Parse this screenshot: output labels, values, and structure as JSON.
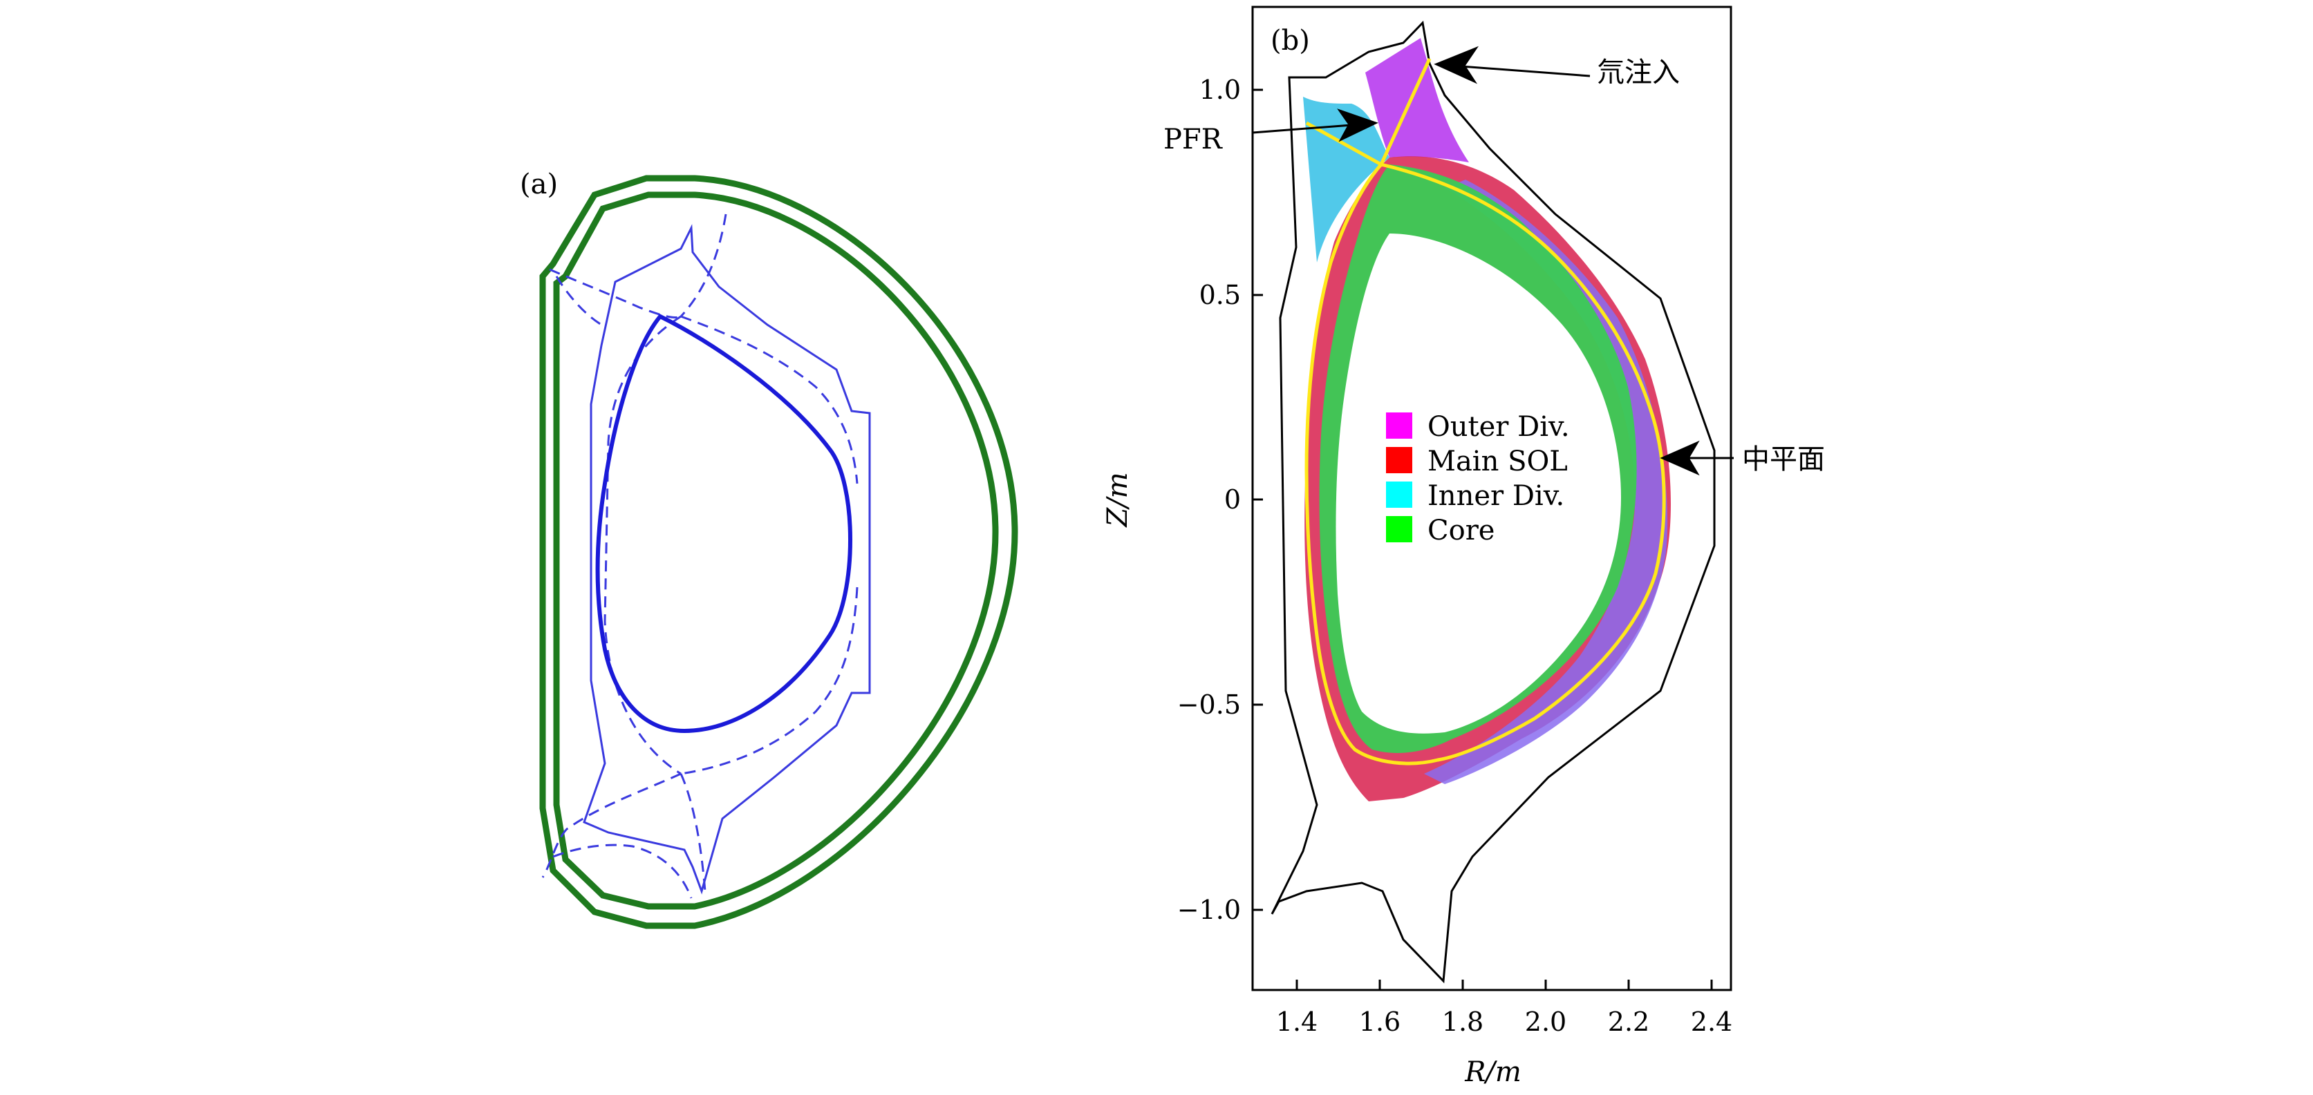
{
  "panel_a": {
    "label": "(a)"
  },
  "panel_b": {
    "label": "(b)",
    "x_axis": {
      "label": "R/m",
      "ticks": [
        "1.4",
        "1.6",
        "1.8",
        "2.0",
        "2.2",
        "2.4"
      ]
    },
    "y_axis": {
      "label": "Z/m",
      "ticks": [
        "1.0",
        "0.5",
        "0",
        "−0.5",
        "−1.0"
      ]
    },
    "annotations": {
      "gas_puff": "氘注入",
      "pfr": "PFR",
      "midplane": "中平面"
    },
    "legend": [
      {
        "label": "Outer Div.",
        "color": "#ff00ff"
      },
      {
        "label": "Main SOL",
        "color": "#ff0000"
      },
      {
        "label": "Inner Div.",
        "color": "#00ffff"
      },
      {
        "label": "Core",
        "color": "#00ff00"
      }
    ]
  }
}
